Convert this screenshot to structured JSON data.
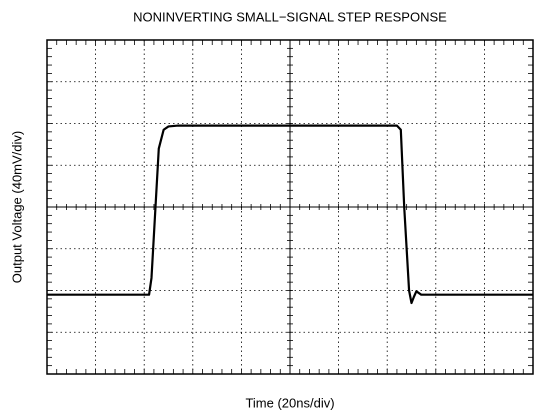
{
  "chart_data": {
    "type": "line",
    "title": "NONINVERTING SMALL−SIGNAL STEP RESPONSE",
    "x_label": "Time (20ns/div)",
    "y_label": "Output Voltage (40mV/div)",
    "x": [
      0,
      2.1,
      2.15,
      2.3,
      2.4,
      2.5,
      2.7,
      7.2,
      7.28,
      7.35,
      7.45,
      7.5,
      7.55,
      7.6,
      7.7,
      10
    ],
    "values": [
      -2.1,
      -2.1,
      -1.7,
      1.4,
      1.85,
      1.93,
      1.95,
      1.95,
      1.85,
      0,
      -2.0,
      -2.3,
      -2.15,
      -2.02,
      -2.1,
      -2.1
    ],
    "color": "#000000",
    "xlim": [
      0,
      10
    ],
    "xticks": [
      0,
      1,
      2,
      3,
      4,
      5,
      6,
      7,
      8,
      9,
      10
    ],
    "ylim": [
      -4,
      4
    ],
    "yticks": [
      -4,
      -3,
      -2,
      -1,
      0,
      1,
      2,
      3,
      4
    ],
    "grid": true
  }
}
